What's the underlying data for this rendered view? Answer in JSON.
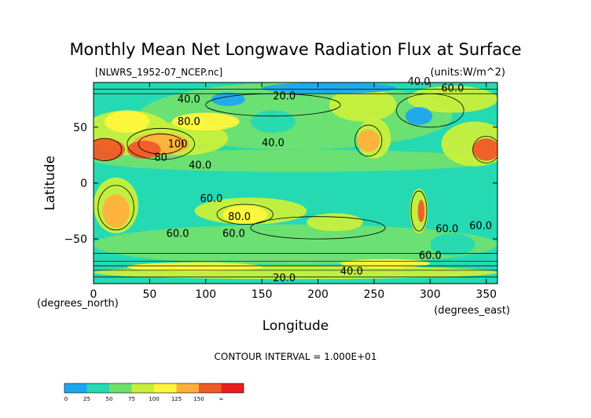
{
  "chart_data": {
    "type": "heatmap",
    "title": "Monthly Mean Net Longwave Radiation Flux at Surface",
    "subtitle_left": "[NLWRS_1952-07_NCEP.nc]",
    "subtitle_right": "(units:W/m^2)",
    "xlabel": "Longitude",
    "ylabel": "Latitude",
    "x_unit": "(degrees_east)",
    "y_unit": "(degrees_north)",
    "xlim": [
      0,
      360
    ],
    "ylim": [
      -90,
      90
    ],
    "x_ticks": [
      0,
      50,
      100,
      150,
      200,
      250,
      300,
      350
    ],
    "y_ticks": [
      -50,
      0,
      50
    ],
    "contour_interval_text": "CONTOUR INTERVAL = 1.000E+01",
    "contour_labels": [
      {
        "text": "40.0",
        "lon": 290,
        "lat": 88
      },
      {
        "text": "60.0",
        "lon": 320,
        "lat": 82
      },
      {
        "text": "40.0",
        "lon": 85,
        "lat": 72
      },
      {
        "text": "20.0",
        "lon": 170,
        "lat": 75
      },
      {
        "text": "80.0",
        "lon": 85,
        "lat": 52
      },
      {
        "text": "100",
        "lon": 75,
        "lat": 32
      },
      {
        "text": "80",
        "lon": 60,
        "lat": 20
      },
      {
        "text": "40.0",
        "lon": 160,
        "lat": 33
      },
      {
        "text": "40.0",
        "lon": 95,
        "lat": 13
      },
      {
        "text": "60.0",
        "lon": 105,
        "lat": -17
      },
      {
        "text": "80.0",
        "lon": 130,
        "lat": -33
      },
      {
        "text": "60.0",
        "lon": 75,
        "lat": -48
      },
      {
        "text": "60.0",
        "lon": 125,
        "lat": -48
      },
      {
        "text": "60.0",
        "lon": 315,
        "lat": -44
      },
      {
        "text": "60.0",
        "lon": 345,
        "lat": -41
      },
      {
        "text": "60.0",
        "lon": 300,
        "lat": -68
      },
      {
        "text": "40.0",
        "lon": 230,
        "lat": -82
      },
      {
        "text": "20.0",
        "lon": 170,
        "lat": -88
      }
    ],
    "color_scale": {
      "bins": [
        "0",
        "25",
        "50",
        "75",
        "100",
        "125",
        "150",
        "∞"
      ],
      "colors": [
        "#1ea7f1",
        "#25d9b3",
        "#6fe070",
        "#c8f03c",
        "#fff53c",
        "#ffb03c",
        "#f05a28",
        "#e81e1e"
      ]
    }
  }
}
